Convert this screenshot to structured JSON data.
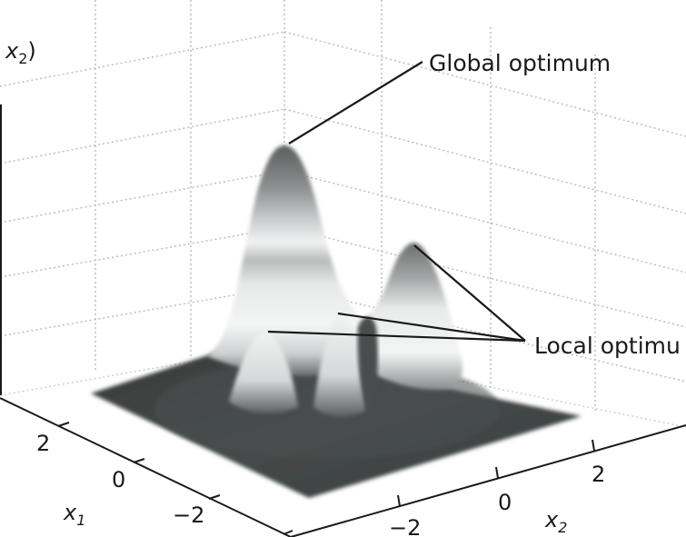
{
  "title": {
    "prefix": "x",
    "subscript": "2",
    "suffix": ")"
  },
  "annotations": {
    "global": "Global optimum",
    "local": "Local optimu"
  },
  "axes": {
    "x1": {
      "label": "x",
      "subscript": "1",
      "ticks": [
        "2",
        "0",
        "−2"
      ]
    },
    "x2": {
      "label": "x",
      "subscript": "2",
      "ticks": [
        "−2",
        "0",
        "2"
      ]
    }
  },
  "colors": {
    "grid": "#bdbdbd",
    "axis": "#1a1a1a",
    "base": "#3f4242",
    "peak_light": "#f2f4f4",
    "peak_dark": "#5a5d5d"
  }
}
